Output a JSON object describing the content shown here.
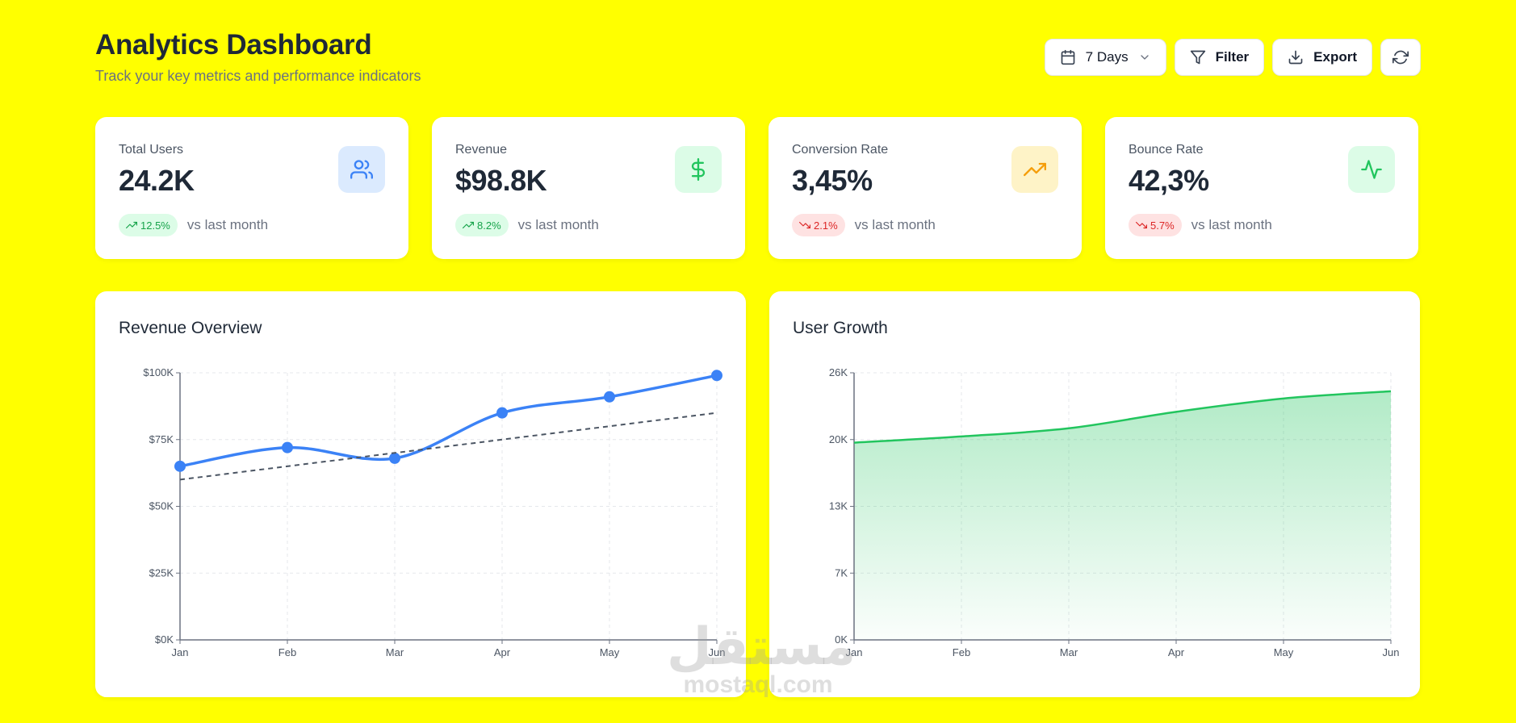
{
  "header": {
    "title": "Analytics Dashboard",
    "subtitle": "Track your key metrics and performance indicators"
  },
  "toolbar": {
    "range_label": "7 Days",
    "filter_label": "Filter",
    "export_label": "Export"
  },
  "cards": [
    {
      "label": "Total Users",
      "value": "24.2K",
      "change": "12.5%",
      "trend": "up",
      "compare": "vs last month",
      "icon": "users-icon",
      "icon_color": "#3b82f6",
      "icon_bg": "#dbeafe"
    },
    {
      "label": "Revenue",
      "value": "$98.8K",
      "change": "8.2%",
      "trend": "up",
      "compare": "vs last month",
      "icon": "dollar-icon",
      "icon_color": "#22c55e",
      "icon_bg": "#dcfce7"
    },
    {
      "label": "Conversion Rate",
      "value": "3,45%",
      "change": "2.1%",
      "trend": "down",
      "compare": "vs last month",
      "icon": "trending-up-icon",
      "icon_color": "#f59e0b",
      "icon_bg": "#fef3c7"
    },
    {
      "label": "Bounce Rate",
      "value": "42,3%",
      "change": "5.7%",
      "trend": "down",
      "compare": "vs last month",
      "icon": "activity-icon",
      "icon_color": "#22c55e",
      "icon_bg": "#dcfce7"
    }
  ],
  "chart_data": [
    {
      "type": "line",
      "title": "Revenue Overview",
      "categories": [
        "Jan",
        "Feb",
        "Mar",
        "Apr",
        "May",
        "Jun"
      ],
      "series": [
        {
          "values": [
            65,
            72,
            68,
            85,
            91,
            99
          ],
          "color": "#3b82f6",
          "style": "solid",
          "markers": true
        },
        {
          "values": [
            60,
            65,
            70,
            75,
            80,
            85
          ],
          "color": "#4b5563",
          "style": "dashed",
          "markers": false
        }
      ],
      "ylim": [
        0,
        100
      ],
      "yticks": [
        0,
        25,
        50,
        75,
        100
      ],
      "ytick_labels": [
        "$0K",
        "$25K",
        "$50K",
        "$75K",
        "$100K"
      ],
      "grid": true
    },
    {
      "type": "area",
      "title": "User Growth",
      "categories": [
        "Jan",
        "Feb",
        "Mar",
        "Apr",
        "May",
        "Jun"
      ],
      "series": [
        {
          "values": [
            19.2,
            19.8,
            20.6,
            22.2,
            23.5,
            24.2
          ],
          "color": "#22c55e"
        }
      ],
      "ylim": [
        0,
        26
      ],
      "yticks": [
        0,
        6.5,
        13,
        19.5,
        26
      ],
      "ytick_labels": [
        "0K",
        "7K",
        "13K",
        "20K",
        "26K"
      ],
      "grid": true
    }
  ],
  "watermark": {
    "arabic": "مستقل",
    "latin": "mostaql.com"
  }
}
